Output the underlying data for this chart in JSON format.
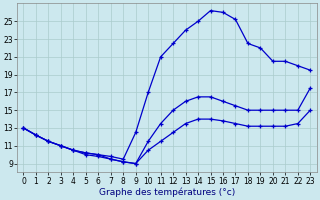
{
  "xlabel": "Graphe des températures (°c)",
  "background_color": "#cce8ee",
  "grid_color": "#aacccc",
  "line_color": "#0000cc",
  "x_ticks": [
    0,
    1,
    2,
    3,
    4,
    5,
    6,
    7,
    8,
    9,
    10,
    11,
    12,
    13,
    14,
    15,
    16,
    17,
    18,
    19,
    20,
    21,
    22,
    23
  ],
  "y_ticks": [
    9,
    11,
    13,
    15,
    17,
    19,
    21,
    23,
    25
  ],
  "xlim": [
    -0.5,
    23.5
  ],
  "ylim": [
    8.0,
    27.0
  ],
  "curve_high_x": [
    0,
    1,
    2,
    3,
    4,
    5,
    6,
    7,
    8,
    9,
    10,
    11,
    12,
    13,
    14,
    15,
    16,
    17,
    18,
    19,
    20,
    21,
    22,
    23
  ],
  "curve_high_y": [
    13.0,
    12.2,
    11.5,
    11.0,
    10.5,
    10.2,
    10.0,
    9.8,
    9.5,
    12.5,
    17.0,
    21.0,
    22.5,
    24.0,
    25.0,
    26.2,
    26.0,
    25.2,
    22.5,
    22.0,
    20.5,
    20.5,
    20.0,
    19.5
  ],
  "curve_mid_x": [
    0,
    1,
    2,
    3,
    4,
    5,
    6,
    7,
    8,
    9,
    10,
    11,
    12,
    13,
    14,
    15,
    16,
    17,
    18,
    19,
    20,
    21,
    22,
    23
  ],
  "curve_mid_y": [
    13.0,
    12.2,
    11.5,
    11.0,
    10.5,
    10.2,
    10.0,
    9.5,
    9.2,
    9.0,
    11.5,
    13.5,
    15.0,
    16.0,
    16.5,
    16.5,
    16.0,
    15.5,
    15.0,
    15.0,
    15.0,
    15.0,
    15.0,
    17.5
  ],
  "curve_low_x": [
    0,
    1,
    2,
    3,
    4,
    5,
    6,
    7,
    8,
    9,
    10,
    11,
    12,
    13,
    14,
    15,
    16,
    17,
    18,
    19,
    20,
    21,
    22,
    23
  ],
  "curve_low_y": [
    13.0,
    12.2,
    11.5,
    11.0,
    10.5,
    10.0,
    9.8,
    9.5,
    9.2,
    9.0,
    10.5,
    11.5,
    12.5,
    13.5,
    14.0,
    14.0,
    13.8,
    13.5,
    13.2,
    13.2,
    13.2,
    13.2,
    13.5,
    15.0
  ],
  "xlabel_fontsize": 6.5,
  "tick_fontsize": 5.5
}
